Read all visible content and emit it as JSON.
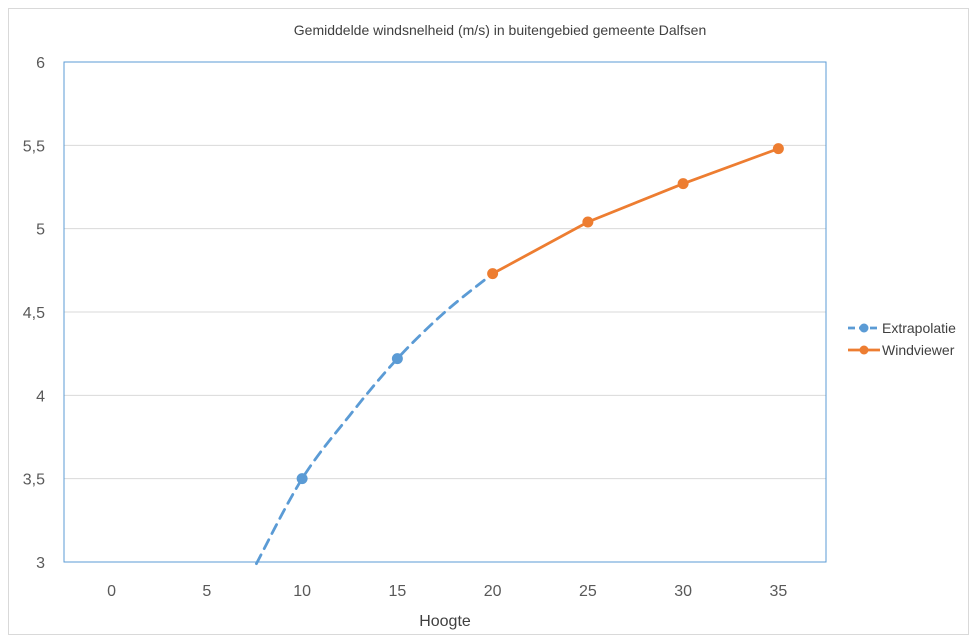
{
  "chart_data": {
    "type": "line",
    "title": "Gemiddelde windsnelheid (m/s) in buitengebied gemeente Dalfsen",
    "xlabel": "Hoogte",
    "ylabel": "",
    "xlim": [
      -2.5,
      37.5
    ],
    "ylim": [
      3,
      6
    ],
    "x_ticks": [
      0,
      5,
      10,
      15,
      20,
      25,
      30,
      35
    ],
    "y_ticks": [
      3,
      3.5,
      4,
      4.5,
      5,
      5.5,
      6
    ],
    "y_tick_labels": [
      "3",
      "3,5",
      "4",
      "4,5",
      "5",
      "5,5",
      "6"
    ],
    "x_tick_labels": [
      "0",
      "5",
      "10",
      "15",
      "20",
      "25",
      "30",
      "35"
    ],
    "grid": true,
    "legend_position": "right",
    "series": [
      {
        "name": "Extrapolatie",
        "color": "#5b9bd5",
        "dashed": true,
        "markers": [
          [
            10,
            3.5
          ],
          [
            15,
            4.22
          ]
        ],
        "curve": [
          [
            7.6,
            2.99
          ],
          [
            10,
            3.5
          ],
          [
            12.5,
            3.88
          ],
          [
            15,
            4.22
          ],
          [
            17.5,
            4.5
          ],
          [
            20,
            4.73
          ]
        ]
      },
      {
        "name": "Windviewer",
        "color": "#ed7d31",
        "dashed": false,
        "markers": [
          [
            20,
            4.73
          ],
          [
            25,
            5.04
          ],
          [
            30,
            5.27
          ],
          [
            35,
            5.48
          ]
        ],
        "curve": [
          [
            20,
            4.73
          ],
          [
            25,
            5.04
          ],
          [
            30,
            5.27
          ],
          [
            35,
            5.48
          ]
        ]
      }
    ]
  }
}
